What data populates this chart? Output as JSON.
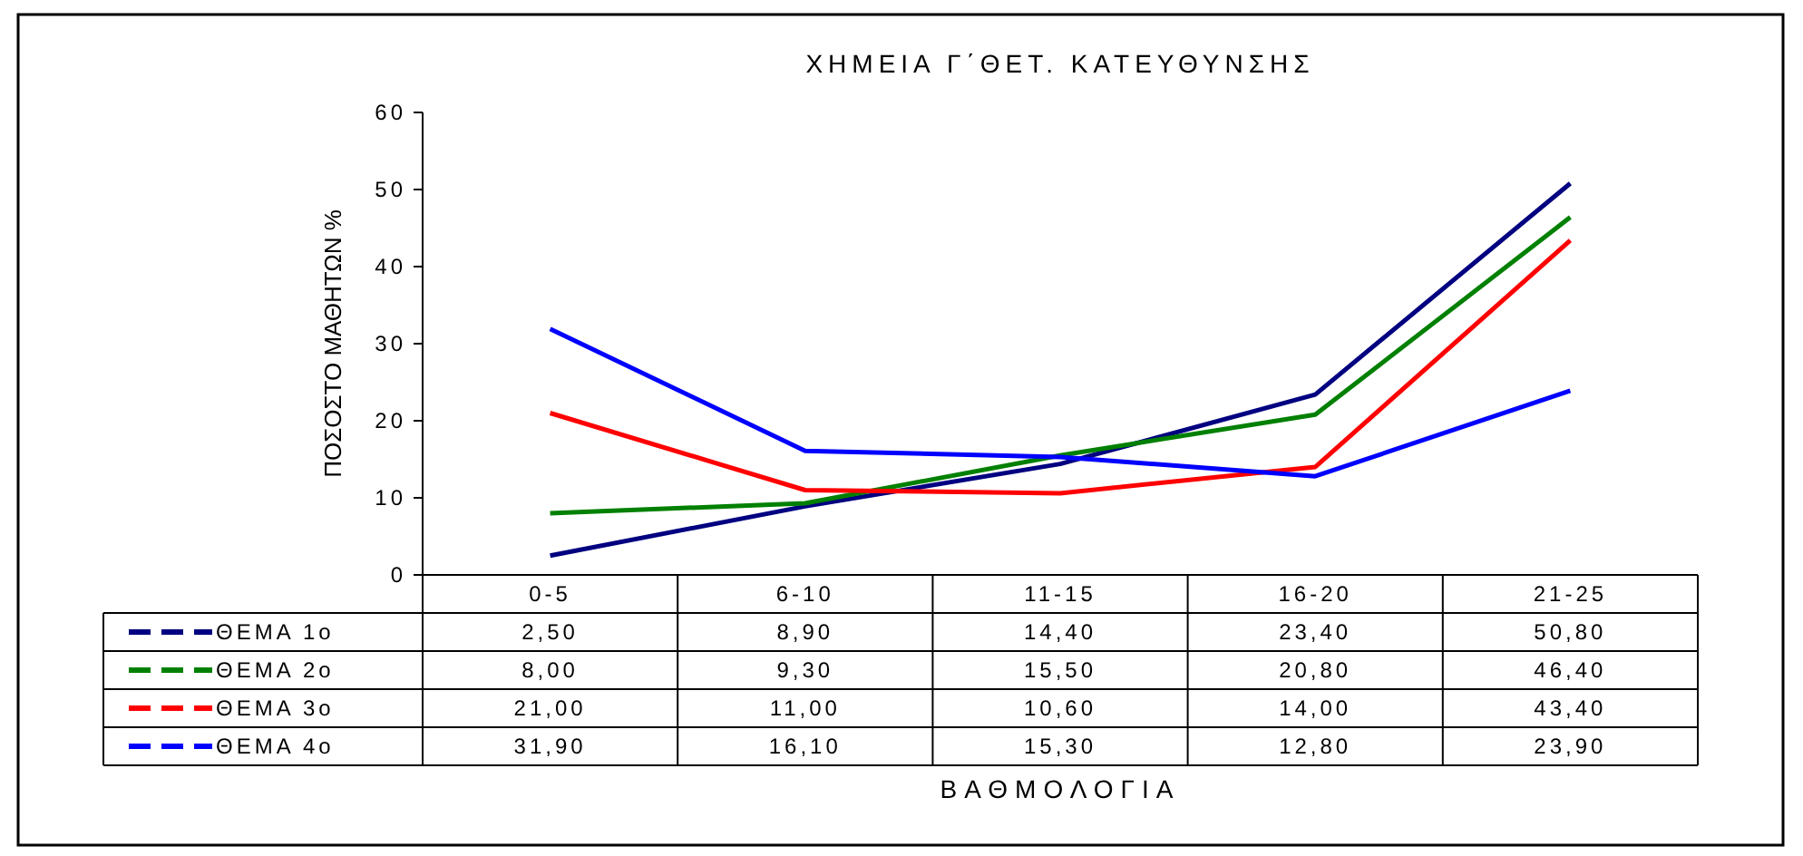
{
  "chart_data": {
    "type": "line",
    "title": "ΧΗΜΕΙΑ Γ΄ΘΕΤ. ΚΑΤΕΥΘΥΝΣΗΣ",
    "annotations": [
      "ΒΑΘΜΟΛΟΓΙΑ"
    ],
    "ylabel": "ΠΟΣΟΣΤΟ ΜΑΘΗΤΩΝ %",
    "categories": [
      "0-5",
      "6-10",
      "11-15",
      "16-20",
      "21-25"
    ],
    "ylim": [
      0,
      60
    ],
    "yticks": [
      0,
      10,
      20,
      30,
      40,
      50,
      60
    ],
    "grid": false,
    "legend": "bottom",
    "series": [
      {
        "name": "ΘΕΜΑ 1ο",
        "color": "#000080",
        "values": [
          2.5,
          8.9,
          14.4,
          23.4,
          50.8
        ],
        "value_labels": [
          "2,50",
          "8,90",
          "14,40",
          "23,40",
          "50,80"
        ]
      },
      {
        "name": "ΘΕΜΑ 2ο",
        "color": "#008000",
        "values": [
          8.0,
          9.3,
          15.5,
          20.8,
          46.4
        ],
        "value_labels": [
          "8,00",
          "9,30",
          "15,50",
          "20,80",
          "46,40"
        ]
      },
      {
        "name": "ΘΕΜΑ 3ο",
        "color": "#ff0000",
        "values": [
          21.0,
          11.0,
          10.6,
          14.0,
          43.4
        ],
        "value_labels": [
          "21,00",
          "11,00",
          "10,60",
          "14,00",
          "43,40"
        ]
      },
      {
        "name": "ΘΕΜΑ 4ο",
        "color": "#0000ff",
        "values": [
          31.9,
          16.1,
          15.3,
          12.8,
          23.9
        ],
        "value_labels": [
          "31,90",
          "16,10",
          "15,30",
          "12,80",
          "23,90"
        ]
      }
    ]
  }
}
